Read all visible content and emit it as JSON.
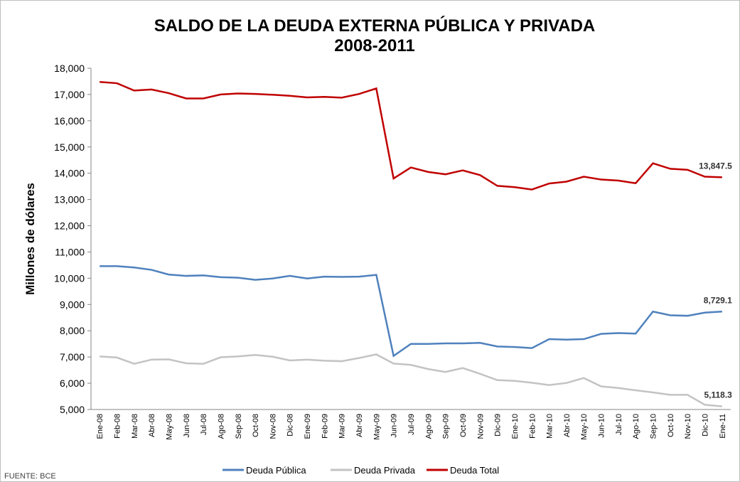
{
  "chart_data": {
    "type": "line",
    "title": "SALDO DE LA DEUDA EXTERNA PÚBLICA Y PRIVADA",
    "subtitle": "2008-2011",
    "y_label": "Millones de dólares",
    "source": "FUENTE: BCE",
    "categories": [
      "Ene-08",
      "Feb-08",
      "Mar-08",
      "Abr-08",
      "May-08",
      "Jun-08",
      "Jul-08",
      "Ago-08",
      "Sep-08",
      "Oct-08",
      "Nov-08",
      "Dic-08",
      "Ene-09",
      "Feb-09",
      "Mar-09",
      "Abr-09",
      "May-09",
      "Jun-09",
      "Jul-09",
      "Ago-09",
      "Sep-09",
      "Oct-09",
      "Nov-09",
      "Dic-09",
      "Ene-10",
      "Feb-10",
      "Mar-10",
      "Abr-10",
      "May-10",
      "Jun-10",
      "Jul-10",
      "Ago-10",
      "Sep-10",
      "Oct-10",
      "Nov-10",
      "Dic-10",
      "Ene-11"
    ],
    "series": [
      {
        "name": "Deuda Pública",
        "color": "#4f81bd",
        "values": [
          10460,
          10460,
          10410,
          10320,
          10140,
          10090,
          10110,
          10040,
          10020,
          9940,
          9990,
          10090,
          9990,
          10060,
          10050,
          10060,
          10130,
          7040,
          7500,
          7500,
          7520,
          7520,
          7540,
          7400,
          7380,
          7340,
          7680,
          7660,
          7680,
          7880,
          7910,
          7890,
          8730,
          8590,
          8570,
          8690,
          8729.1
        ],
        "value_labels": [
          null,
          null,
          null,
          null,
          null,
          null,
          null,
          null,
          null,
          null,
          null,
          null,
          null,
          null,
          null,
          null,
          null,
          null,
          null,
          null,
          null,
          null,
          null,
          null,
          null,
          null,
          null,
          null,
          null,
          null,
          null,
          null,
          null,
          null,
          null,
          null,
          "8,729.1"
        ]
      },
      {
        "name": "Deuda Privada",
        "color": "#c3c3c3",
        "values": [
          7020,
          6980,
          6740,
          6900,
          6910,
          6760,
          6740,
          6990,
          7020,
          7080,
          7010,
          6870,
          6900,
          6860,
          6840,
          6960,
          7100,
          6750,
          6700,
          6540,
          6430,
          6580,
          6360,
          6120,
          6090,
          6020,
          5930,
          6010,
          6200,
          5880,
          5820,
          5730,
          5650,
          5560,
          5560,
          5180,
          5118.3
        ],
        "value_labels": [
          null,
          null,
          null,
          null,
          null,
          null,
          null,
          null,
          null,
          null,
          null,
          null,
          null,
          null,
          null,
          null,
          null,
          null,
          null,
          null,
          null,
          null,
          null,
          null,
          null,
          null,
          null,
          null,
          null,
          null,
          null,
          null,
          null,
          null,
          null,
          null,
          "5,118.3"
        ]
      },
      {
        "name": "Deuda Total",
        "color": "#c00000",
        "values": [
          17480,
          17430,
          17150,
          17190,
          17050,
          16850,
          16850,
          17000,
          17040,
          17020,
          16990,
          16950,
          16890,
          16910,
          16880,
          17020,
          17230,
          13800,
          14220,
          14050,
          13960,
          14110,
          13930,
          13520,
          13470,
          13380,
          13610,
          13680,
          13870,
          13760,
          13720,
          13620,
          14380,
          14170,
          14130,
          13870,
          13847.5
        ],
        "value_labels": [
          null,
          null,
          null,
          null,
          null,
          null,
          null,
          null,
          null,
          null,
          null,
          null,
          null,
          null,
          null,
          null,
          null,
          null,
          null,
          null,
          null,
          null,
          null,
          null,
          null,
          null,
          null,
          null,
          null,
          null,
          null,
          null,
          null,
          null,
          null,
          null,
          "13,847.5"
        ]
      }
    ],
    "ylim": [
      5000,
      18000
    ],
    "yticks": [
      {
        "value": 5000,
        "label": "5,000"
      },
      {
        "value": 6000,
        "label": "6,000"
      },
      {
        "value": 7000,
        "label": "7,000"
      },
      {
        "value": 8000,
        "label": "8,000"
      },
      {
        "value": 9000,
        "label": "9,000"
      },
      {
        "value": 10000,
        "label": "10,000"
      },
      {
        "value": 11000,
        "label": "11,000"
      },
      {
        "value": 12000,
        "label": "12,000"
      },
      {
        "value": 13000,
        "label": "13,000"
      },
      {
        "value": 14000,
        "label": "14,000"
      },
      {
        "value": 15000,
        "label": "15,000"
      },
      {
        "value": 16000,
        "label": "16,000"
      },
      {
        "value": 17000,
        "label": "17,000"
      },
      {
        "value": 18000,
        "label": "18,000"
      }
    ],
    "grid": false,
    "legend": "bottom"
  }
}
